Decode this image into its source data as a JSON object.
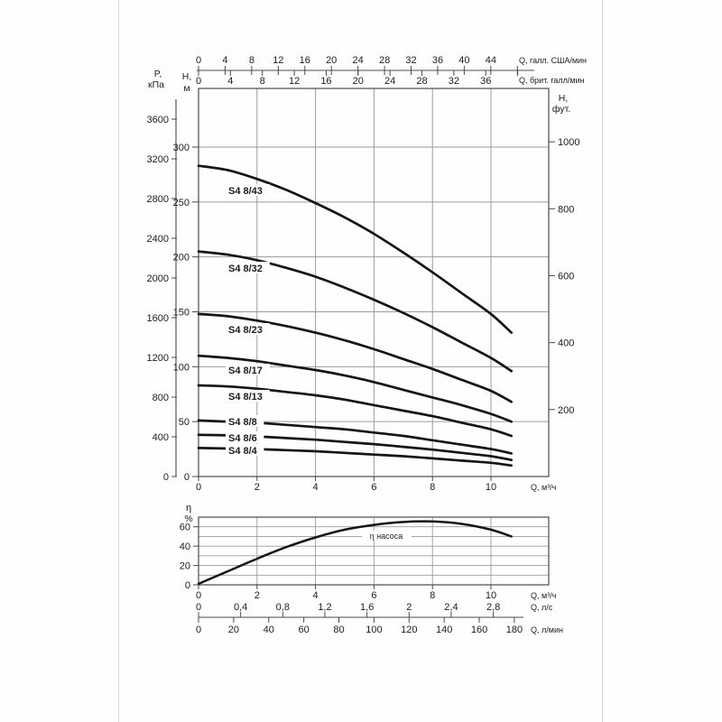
{
  "page": {
    "background": "#fefefe",
    "edge_line_color": "#d7d7d7"
  },
  "colors": {
    "curve": "#151515",
    "grid": "#9c9c9c",
    "frame": "#4a4a4a",
    "text": "#1c1c1c"
  },
  "chart_data": [
    {
      "type": "line",
      "title": "",
      "xlabel": "Q, м³/ч",
      "x_ticks": [
        0,
        2,
        4,
        6,
        8,
        10
      ],
      "xlim": [
        0,
        11.97
      ],
      "ylim": [
        0,
        353
      ],
      "grid": true,
      "y_axis_m": {
        "label": [
          "H,",
          "м"
        ],
        "ticks": [
          0,
          50,
          100,
          150,
          200,
          250,
          300
        ]
      },
      "y_axis_kpa": {
        "label": [
          "P,",
          "кПа"
        ],
        "ticks": [
          0,
          400,
          800,
          1200,
          1600,
          2000,
          2400,
          2800,
          3200,
          3600
        ]
      },
      "y_axis_ft": {
        "label": [
          "H,",
          "фут."
        ],
        "ticks": [
          200,
          400,
          600,
          800,
          1000
        ]
      },
      "top_axis_us_gpm": {
        "label": "Q, галл. США/мин",
        "ticks": [
          0,
          4,
          8,
          12,
          16,
          20,
          24,
          28,
          32,
          36,
          40,
          44
        ],
        "unlabeled_ticks": [
          48
        ]
      },
      "top_axis_imp_gpm": {
        "label": "Q, брит. галл/мин",
        "ticks": [
          0,
          4,
          8,
          12,
          16,
          20,
          24,
          28,
          32,
          36
        ],
        "unlabeled_ticks": [
          40
        ]
      },
      "series": [
        {
          "name": "S4 8/43",
          "points": [
            [
              0,
              283
            ],
            [
              1,
              279
            ],
            [
              2,
              271
            ],
            [
              3,
              261
            ],
            [
              4,
              249
            ],
            [
              5,
              236
            ],
            [
              6,
              221
            ],
            [
              7,
              204
            ],
            [
              8,
              186
            ],
            [
              9,
              167
            ],
            [
              10,
              148
            ],
            [
              10.7,
              131
            ]
          ]
        },
        {
          "name": "S4 8/32",
          "points": [
            [
              0,
              205
            ],
            [
              1,
              202
            ],
            [
              2,
              197
            ],
            [
              3,
              190
            ],
            [
              4,
              182
            ],
            [
              5,
              172
            ],
            [
              6,
              161
            ],
            [
              7,
              149
            ],
            [
              8,
              136
            ],
            [
              9,
              122
            ],
            [
              10,
              108
            ],
            [
              10.7,
              96
            ]
          ]
        },
        {
          "name": "S4 8/23",
          "points": [
            [
              0,
              148
            ],
            [
              1,
              146
            ],
            [
              2,
              142
            ],
            [
              3,
              137
            ],
            [
              4,
              131
            ],
            [
              5,
              124
            ],
            [
              6,
              116
            ],
            [
              7,
              107
            ],
            [
              8,
              98
            ],
            [
              9,
              88
            ],
            [
              10,
              78
            ],
            [
              10.7,
              68
            ]
          ]
        },
        {
          "name": "S4 8/17",
          "points": [
            [
              0,
              110
            ],
            [
              1,
              108
            ],
            [
              2,
              105
            ],
            [
              3,
              101
            ],
            [
              4,
              97
            ],
            [
              5,
              92
            ],
            [
              6,
              86
            ],
            [
              7,
              79
            ],
            [
              8,
              72
            ],
            [
              9,
              65
            ],
            [
              10,
              57
            ],
            [
              10.7,
              50
            ]
          ]
        },
        {
          "name": "S4 8/13",
          "points": [
            [
              0,
              83
            ],
            [
              1,
              82
            ],
            [
              2,
              80
            ],
            [
              3,
              77
            ],
            [
              4,
              74
            ],
            [
              5,
              70
            ],
            [
              6,
              65
            ],
            [
              7,
              60
            ],
            [
              8,
              55
            ],
            [
              9,
              49
            ],
            [
              10,
              43
            ],
            [
              10.7,
              37
            ]
          ]
        },
        {
          "name": "S4 8/8",
          "points": [
            [
              0,
              51
            ],
            [
              1,
              50
            ],
            [
              2,
              49
            ],
            [
              3,
              47
            ],
            [
              4,
              45
            ],
            [
              5,
              43
            ],
            [
              6,
              40
            ],
            [
              7,
              37
            ],
            [
              8,
              33
            ],
            [
              9,
              29
            ],
            [
              10,
              25
            ],
            [
              10.7,
              21
            ]
          ]
        },
        {
          "name": "S4 8/6",
          "points": [
            [
              0,
              38
            ],
            [
              1,
              37.5
            ],
            [
              2,
              36.5
            ],
            [
              3,
              35
            ],
            [
              4,
              33.5
            ],
            [
              5,
              31.5
            ],
            [
              6,
              29.5
            ],
            [
              7,
              27
            ],
            [
              8,
              24.5
            ],
            [
              9,
              21.5
            ],
            [
              10,
              18.5
            ],
            [
              10.7,
              15
            ]
          ]
        },
        {
          "name": "S4 8/4",
          "points": [
            [
              0,
              26
            ],
            [
              1,
              25.5
            ],
            [
              2,
              25
            ],
            [
              3,
              24
            ],
            [
              4,
              23
            ],
            [
              5,
              21.5
            ],
            [
              6,
              20
            ],
            [
              7,
              18.5
            ],
            [
              8,
              16.5
            ],
            [
              9,
              14.5
            ],
            [
              10,
              12.5
            ],
            [
              10.7,
              10
            ]
          ]
        }
      ]
    },
    {
      "type": "line",
      "title": "",
      "ylabel": [
        "η",
        "%"
      ],
      "y_ticks": [
        0,
        20,
        40,
        60
      ],
      "ylim": [
        0,
        70
      ],
      "xlabel": "Q, м³/ч",
      "x_ticks": [
        0,
        2,
        4,
        6,
        8,
        10
      ],
      "grid": true,
      "series": [
        {
          "name": "η насоса",
          "points": [
            [
              0,
              1
            ],
            [
              1,
              14
            ],
            [
              2,
              27
            ],
            [
              3,
              39
            ],
            [
              4,
              49
            ],
            [
              5,
              57
            ],
            [
              6,
              62
            ],
            [
              7,
              65
            ],
            [
              8,
              65.5
            ],
            [
              9,
              63
            ],
            [
              10,
              57
            ],
            [
              10.7,
              50
            ]
          ]
        }
      ],
      "extra_x_axes": [
        {
          "label": "Q, л/с",
          "ticks": [
            "0",
            "0,4",
            "0,8",
            "1,2",
            "1,6",
            "2",
            "2,4",
            "2,8"
          ]
        },
        {
          "label": "Q, л/мин",
          "ticks": [
            0,
            20,
            40,
            60,
            80,
            100,
            120,
            140,
            160,
            180
          ]
        }
      ]
    }
  ]
}
